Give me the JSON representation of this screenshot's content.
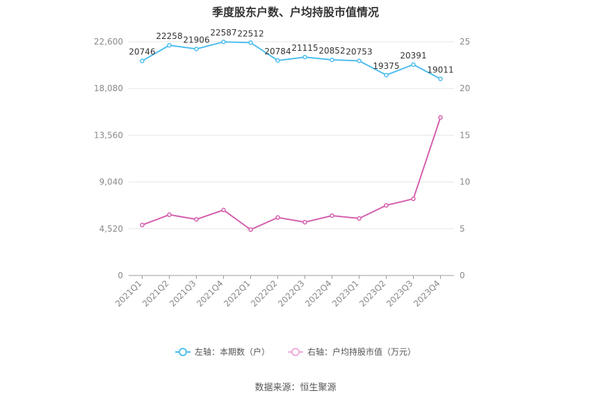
{
  "chart_data": {
    "type": "line",
    "title": "季度股东户数、户均持股市值情况",
    "categories": [
      "2021Q1",
      "2021Q2",
      "2021Q3",
      "2021Q4",
      "2022Q1",
      "2022Q2",
      "2022Q3",
      "2022Q4",
      "2023Q1",
      "2023Q2",
      "2023Q3",
      "2023Q4"
    ],
    "series": [
      {
        "name": "左轴：本期数（户）",
        "axis": "left",
        "color": "#4dbdee",
        "values": [
          20746,
          22258,
          21906,
          22587,
          22512,
          20784,
          21115,
          20852,
          20753,
          19375,
          20391,
          19011
        ],
        "value_labels": [
          "20746",
          "22258",
          "21906",
          "22587",
          "22512",
          "20784",
          "21115",
          "20852",
          "20753",
          "19375",
          "20391",
          "19011"
        ]
      },
      {
        "name": "右轴：户均持股市值（万元）",
        "axis": "right",
        "color": "#d45fae",
        "values": [
          5.4,
          6.5,
          6.0,
          7.0,
          4.9,
          6.2,
          5.7,
          6.4,
          6.1,
          7.5,
          8.2,
          16.9
        ]
      }
    ],
    "y_left": {
      "ticks": [
        0,
        4520,
        9040,
        13560,
        18080,
        22600
      ],
      "tick_labels": [
        "0",
        "4,520",
        "9,040",
        "13,560",
        "18,080",
        "22,600"
      ],
      "ylim": [
        0,
        22600
      ]
    },
    "y_right": {
      "ticks": [
        0,
        5,
        10,
        15,
        20,
        25
      ],
      "tick_labels": [
        "0",
        "5",
        "10",
        "15",
        "20",
        "25"
      ],
      "ylim": [
        0,
        25
      ]
    },
    "grid": true,
    "legend_position": "bottom"
  },
  "source_text": "数据来源：恒生聚源"
}
